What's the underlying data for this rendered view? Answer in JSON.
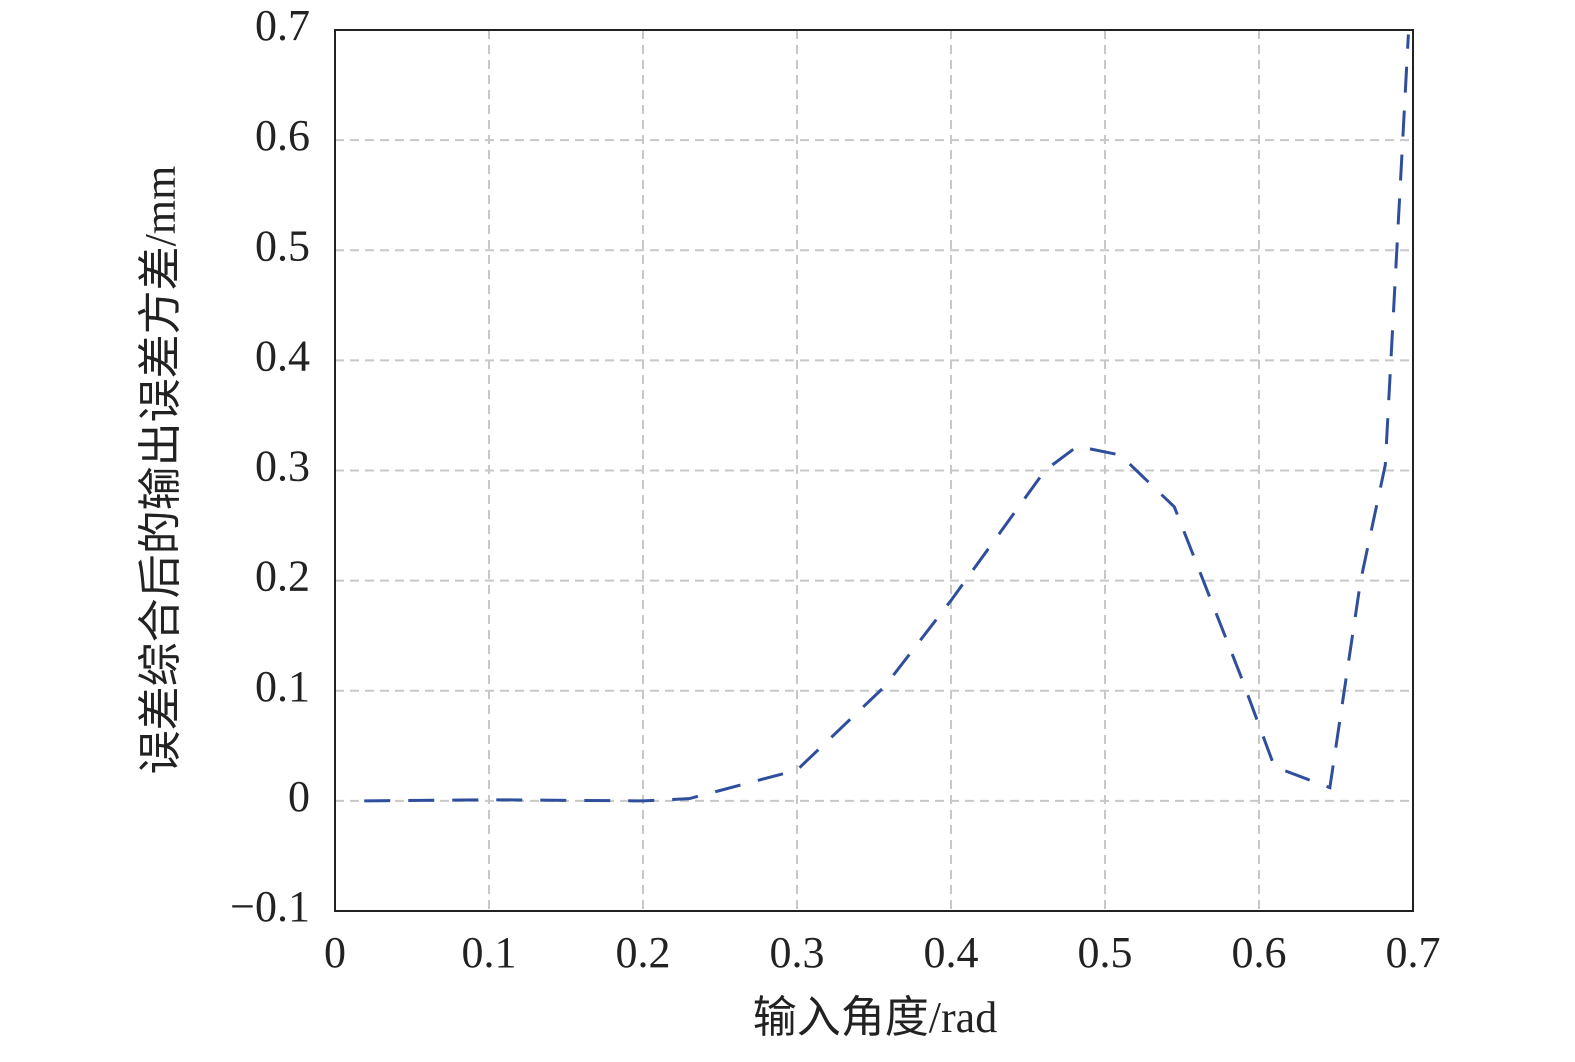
{
  "chart_data": {
    "type": "line",
    "x_label": "输入角度/rad",
    "y_label": "误差综合后的输出误差方差/mm",
    "x": [
      0.019,
      0.1,
      0.2,
      0.23,
      0.3,
      0.357,
      0.4,
      0.461,
      0.482,
      0.51,
      0.545,
      0.588,
      0.61,
      0.646,
      0.666,
      0.682,
      0.697
    ],
    "series": [
      {
        "color": "#2f4e9c",
        "values": [
          0,
          0.001,
          0,
          0.002,
          0.028,
          0.104,
          0.182,
          0.3,
          0.322,
          0.314,
          0.267,
          0.114,
          0.031,
          0.012,
          0.2,
          0.305,
          0.696
        ]
      }
    ],
    "xlim": [
      0,
      0.7
    ],
    "xticks": [
      0,
      0.1,
      0.2,
      0.3,
      0.4,
      0.5,
      0.6,
      0.7
    ],
    "ylim": [
      -0.1,
      0.7
    ],
    "yticks": [
      {
        "value": -0.1,
        "label": "−0.1"
      },
      0,
      0.1,
      0.2,
      0.3,
      0.4,
      0.5,
      0.6,
      0.7
    ],
    "grid": true
  }
}
